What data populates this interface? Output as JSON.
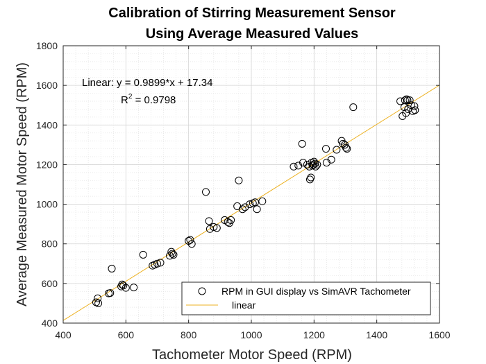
{
  "chart_data": {
    "type": "scatter",
    "title": [
      "Calibration of Stirring Measurement Sensor",
      "Using Average Measured Values"
    ],
    "xlabel": "Tachometer Motor Speed (RPM)",
    "ylabel": "Average Measured Motor Speed (RPM)",
    "xlim": [
      400,
      1600
    ],
    "ylim": [
      400,
      1800
    ],
    "xticks": [
      400,
      600,
      800,
      1000,
      1200,
      1400,
      1600
    ],
    "yticks": [
      400,
      600,
      800,
      1000,
      1200,
      1400,
      1600,
      1800
    ],
    "grid": true,
    "minor_grid": true,
    "annotation": {
      "line1": "Linear:  y = 0.9899*x + 17.34",
      "r2_base": "R",
      "r2_exp": "2",
      "r2_rest": " = 0.9798"
    },
    "legend": {
      "position": "bottom-right",
      "entries": [
        "RPM in GUI display vs SimAVR Tachometer",
        "linear"
      ]
    },
    "series": [
      {
        "name": "RPM in GUI display vs SimAVR Tachometer",
        "marker": "circle-open",
        "color": "#000000",
        "points": [
          [
            505,
            505
          ],
          [
            510,
            525
          ],
          [
            512,
            500
          ],
          [
            545,
            550
          ],
          [
            550,
            552
          ],
          [
            555,
            675
          ],
          [
            585,
            585
          ],
          [
            588,
            595
          ],
          [
            592,
            590
          ],
          [
            600,
            578
          ],
          [
            625,
            580
          ],
          [
            655,
            745
          ],
          [
            685,
            690
          ],
          [
            692,
            695
          ],
          [
            700,
            700
          ],
          [
            710,
            705
          ],
          [
            740,
            740
          ],
          [
            745,
            760
          ],
          [
            748,
            750
          ],
          [
            752,
            745
          ],
          [
            800,
            815
          ],
          [
            805,
            820
          ],
          [
            810,
            800
          ],
          [
            855,
            1062
          ],
          [
            865,
            915
          ],
          [
            868,
            875
          ],
          [
            880,
            885
          ],
          [
            890,
            880
          ],
          [
            915,
            920
          ],
          [
            925,
            910
          ],
          [
            930,
            905
          ],
          [
            935,
            920
          ],
          [
            955,
            990
          ],
          [
            960,
            1120
          ],
          [
            972,
            975
          ],
          [
            980,
            985
          ],
          [
            995,
            1000
          ],
          [
            1005,
            1005
          ],
          [
            1012,
            1010
          ],
          [
            1018,
            975
          ],
          [
            1035,
            1015
          ],
          [
            1135,
            1190
          ],
          [
            1150,
            1195
          ],
          [
            1162,
            1305
          ],
          [
            1165,
            1210
          ],
          [
            1178,
            1200
          ],
          [
            1185,
            1190
          ],
          [
            1187,
            1125
          ],
          [
            1190,
            1135
          ],
          [
            1192,
            1210
          ],
          [
            1195,
            1195
          ],
          [
            1198,
            1200
          ],
          [
            1200,
            1215
          ],
          [
            1203,
            1205
          ],
          [
            1205,
            1190
          ],
          [
            1210,
            1200
          ],
          [
            1238,
            1280
          ],
          [
            1240,
            1210
          ],
          [
            1255,
            1225
          ],
          [
            1272,
            1275
          ],
          [
            1288,
            1320
          ],
          [
            1292,
            1305
          ],
          [
            1298,
            1300
          ],
          [
            1302,
            1285
          ],
          [
            1305,
            1280
          ],
          [
            1325,
            1490
          ],
          [
            1475,
            1520
          ],
          [
            1482,
            1445
          ],
          [
            1488,
            1490
          ],
          [
            1490,
            1525
          ],
          [
            1493,
            1460
          ],
          [
            1495,
            1530
          ],
          [
            1498,
            1525
          ],
          [
            1500,
            1480
          ],
          [
            1505,
            1525
          ],
          [
            1510,
            1500
          ],
          [
            1515,
            1470
          ],
          [
            1520,
            1495
          ],
          [
            1522,
            1475
          ]
        ]
      },
      {
        "name": "linear",
        "color": "#EDB120",
        "slope": 0.9899,
        "intercept": 17.34
      }
    ]
  }
}
